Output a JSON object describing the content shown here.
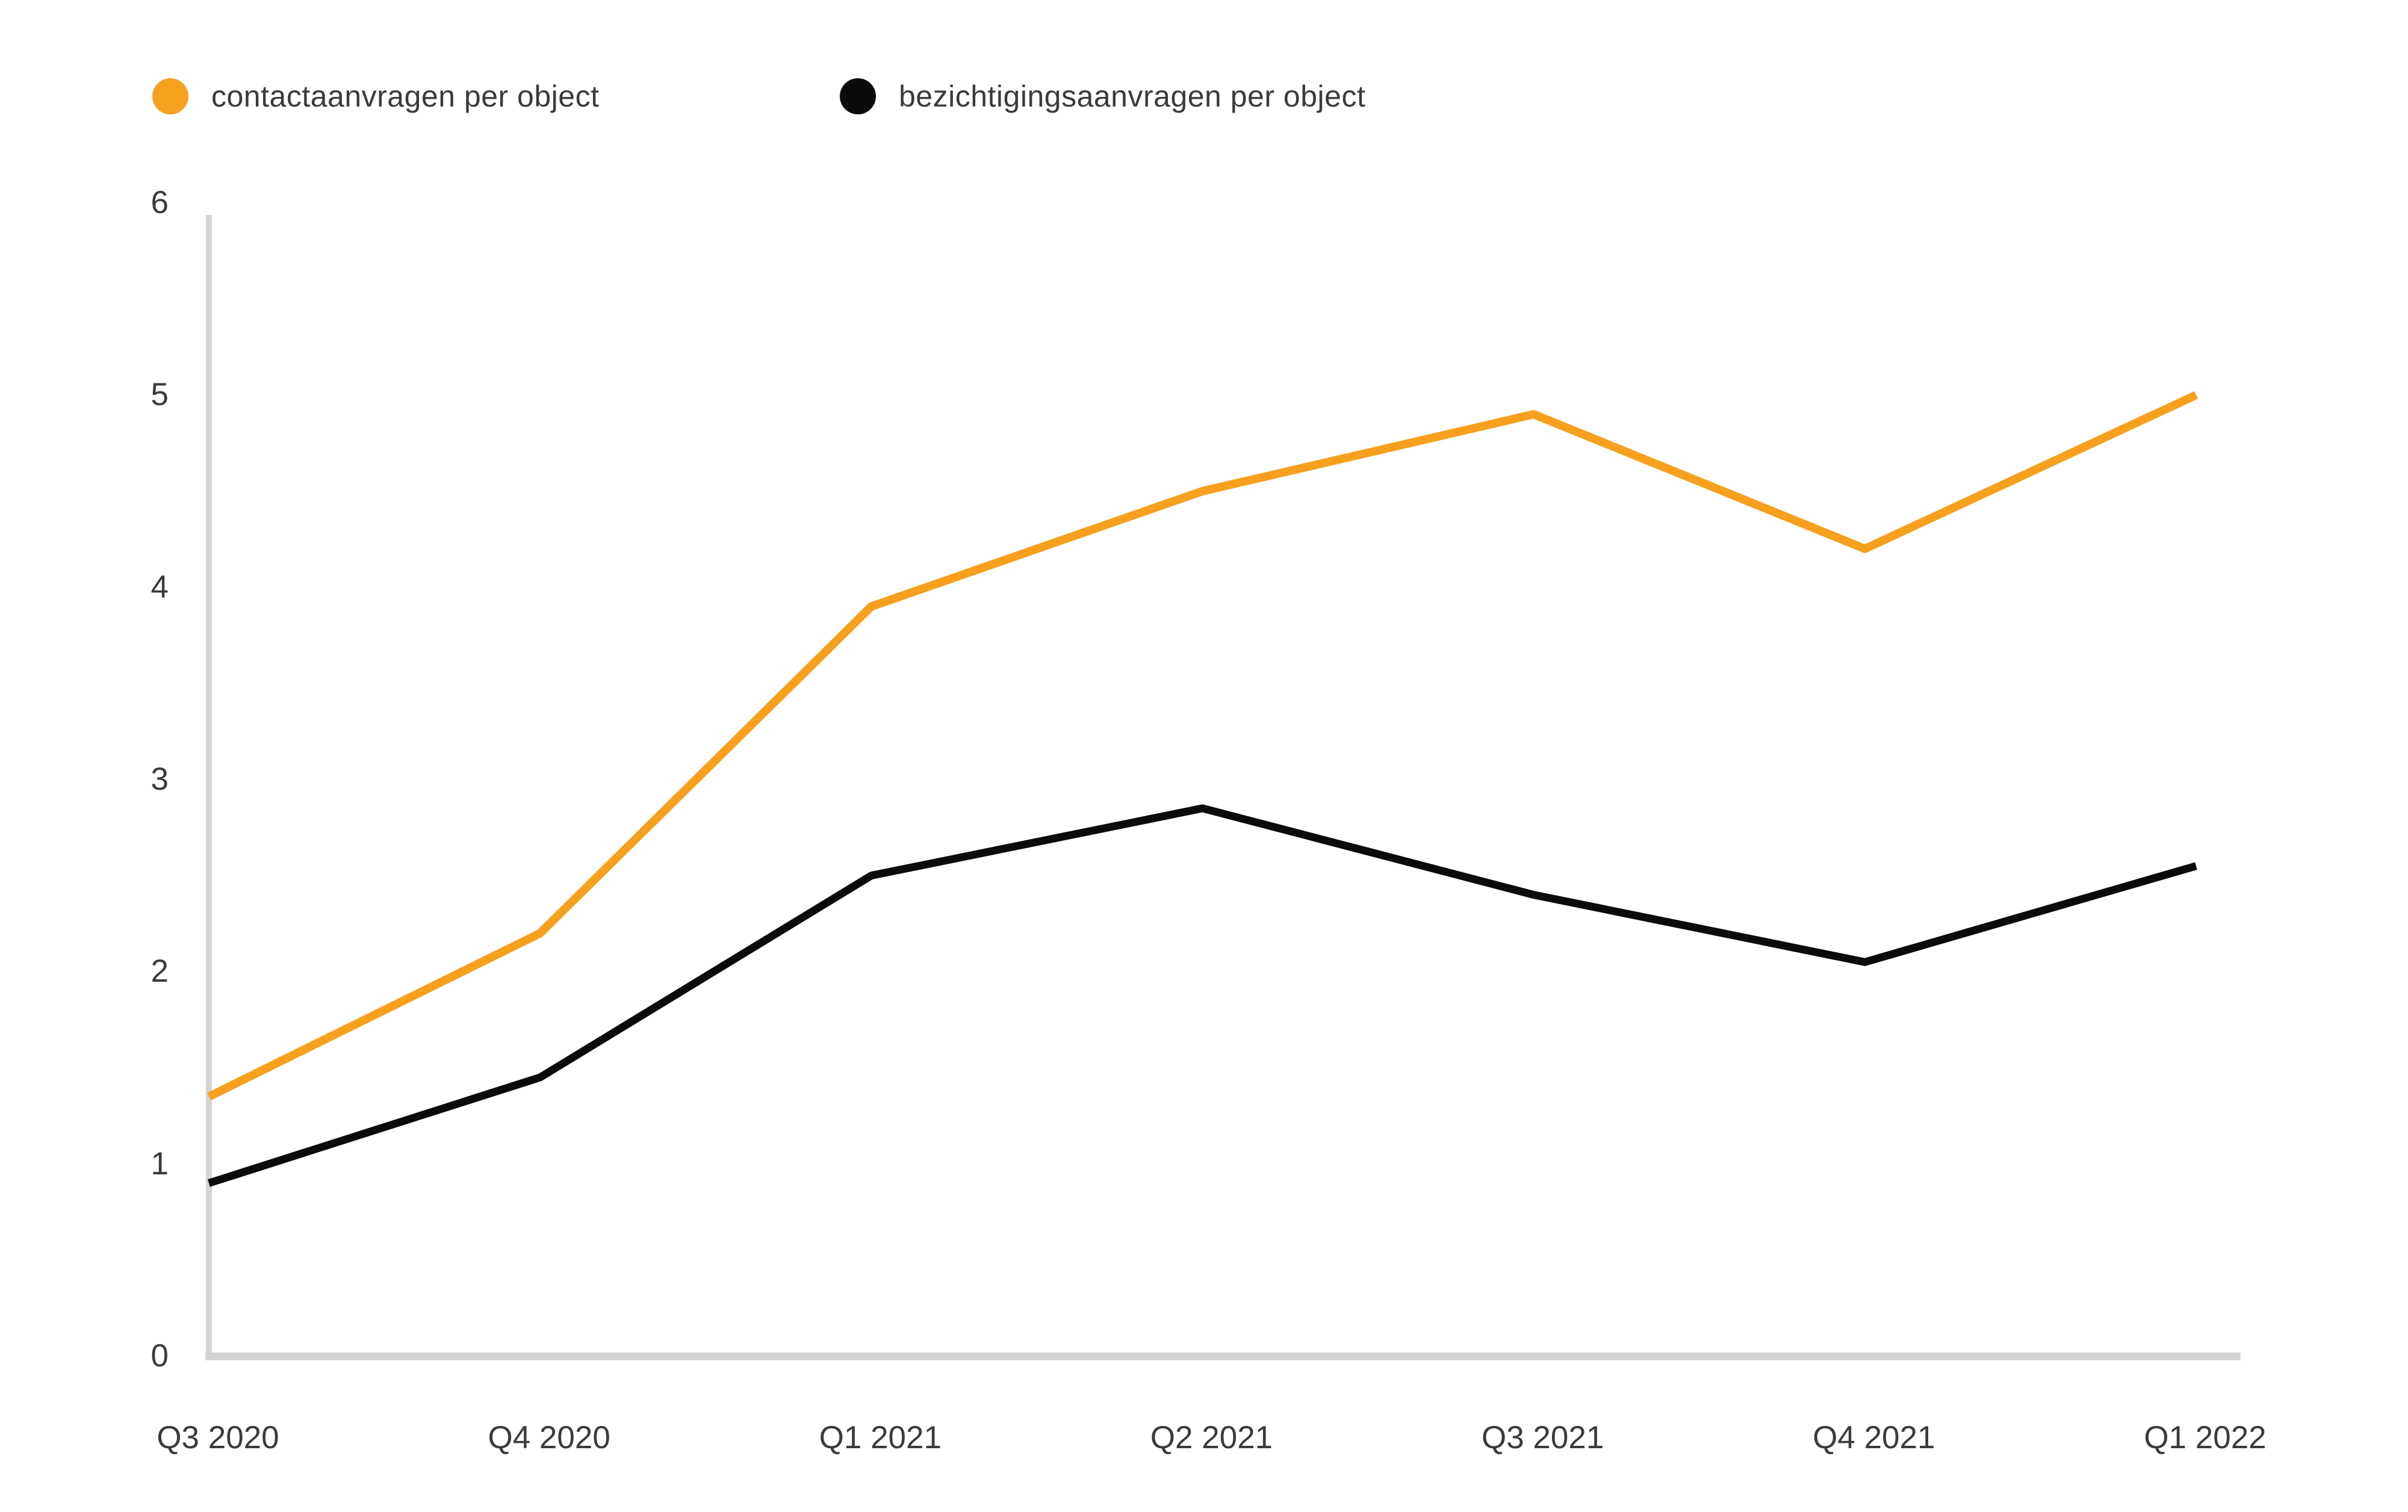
{
  "legend": {
    "items": [
      {
        "label": "contactaanvragen per object",
        "color": "#F6A01E"
      },
      {
        "label": "bezichtigingsaanvragen per object",
        "color": "#0B0B0B"
      }
    ]
  },
  "chart_data": {
    "type": "line",
    "categories": [
      "Q3 2020",
      "Q4 2020",
      "Q1 2021",
      "Q2 2021",
      "Q3 2021",
      "Q4 2021",
      "Q1 2022"
    ],
    "series": [
      {
        "name": "contactaanvragen per object",
        "color": "#F6A01E",
        "values": [
          1.35,
          2.2,
          3.9,
          4.5,
          4.9,
          4.2,
          5.0
        ]
      },
      {
        "name": "bezichtigingsaanvragen per object",
        "color": "#0B0B0B",
        "values": [
          0.9,
          1.45,
          2.5,
          2.85,
          2.4,
          2.05,
          2.55
        ]
      }
    ],
    "title": "",
    "xlabel": "",
    "ylabel": "",
    "ylim": [
      0,
      6
    ],
    "yticks": [
      0,
      1,
      2,
      3,
      4,
      5,
      6
    ],
    "grid": false,
    "legend_position": "top-left",
    "axis_color": "#D4D4D4",
    "label_color": "#3B3B3B"
  }
}
